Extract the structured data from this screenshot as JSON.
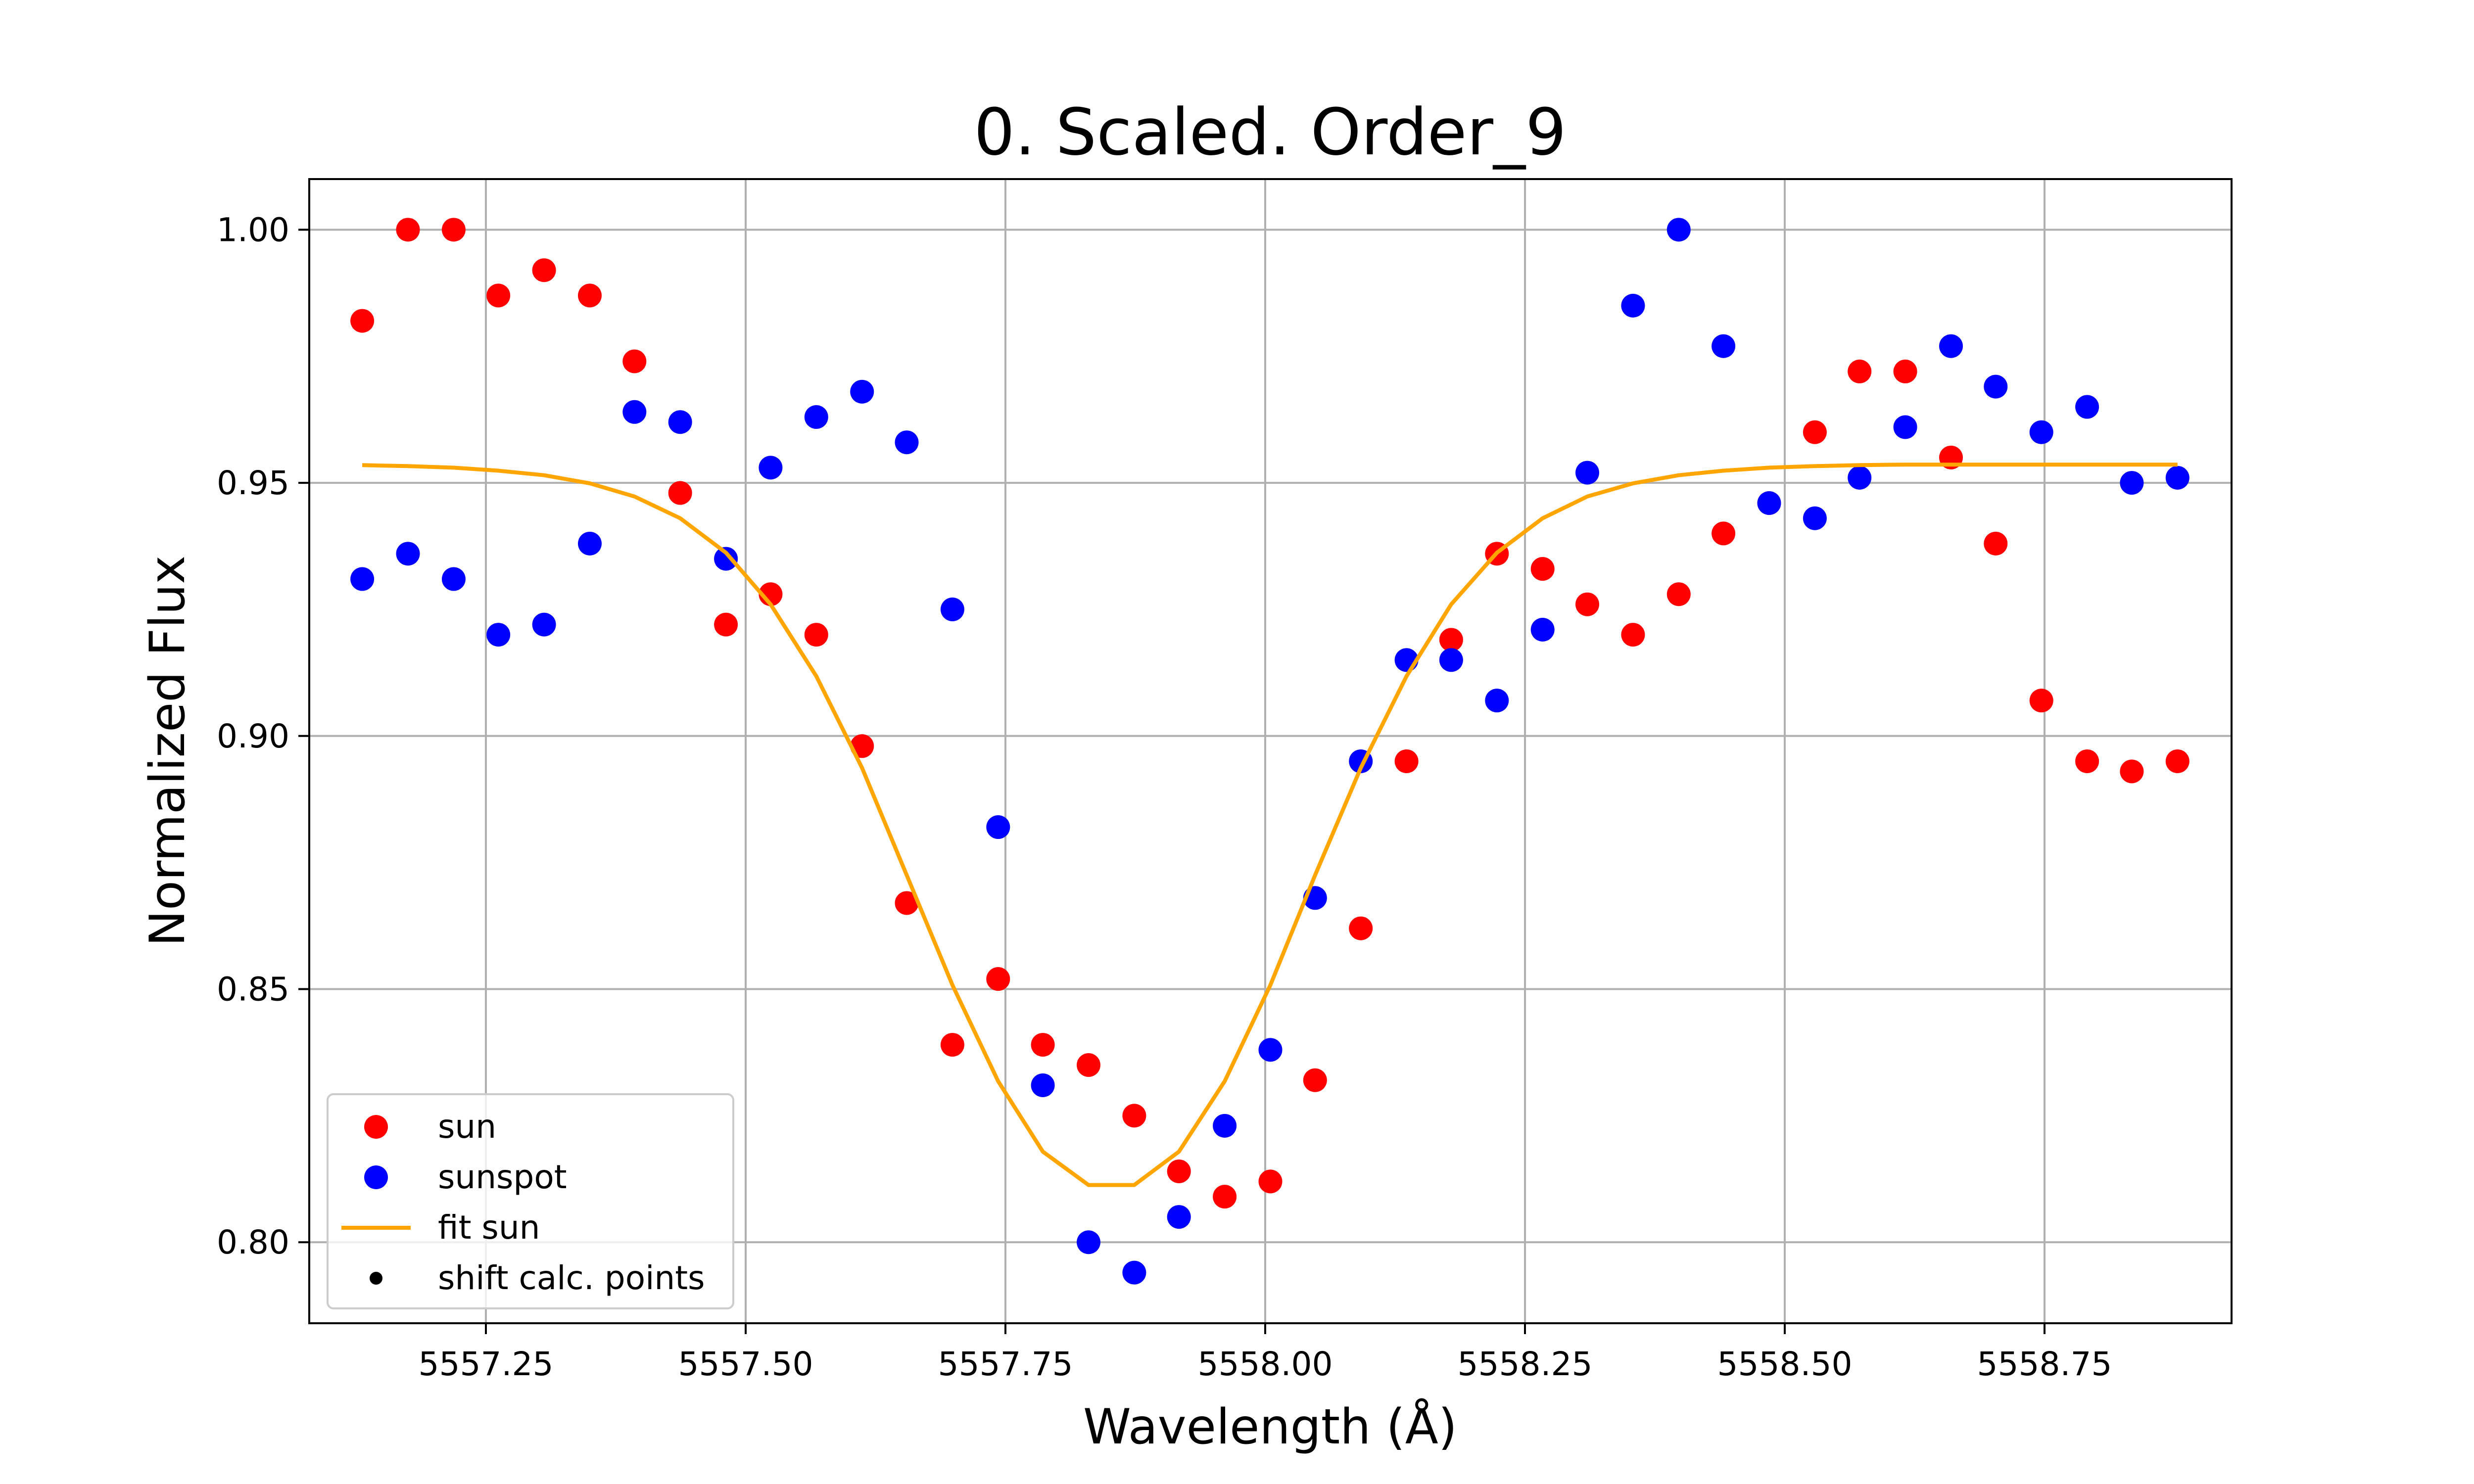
{
  "colors": {
    "sun": "#ff0000",
    "sunspot": "#0000ff",
    "fit": "#ffa500",
    "shift": "#000000",
    "grid": "#b0b0b0"
  },
  "chart_data": {
    "type": "scatter",
    "title": "0. Scaled. Order_9",
    "xlabel": "Wavelength (Å)",
    "ylabel": "Normalized Flux",
    "xlim": [
      5557.08,
      5558.93
    ],
    "ylim": [
      0.784,
      1.01
    ],
    "grid": true,
    "legend_position": "lower-left",
    "xticks": [
      5557.25,
      5557.5,
      5557.75,
      5558.0,
      5558.25,
      5558.5,
      5558.75
    ],
    "xtick_labels": [
      "5557.25",
      "5557.50",
      "5557.75",
      "5558.00",
      "5558.25",
      "5558.50",
      "5558.75"
    ],
    "yticks": [
      0.8,
      0.85,
      0.9,
      0.95,
      1.0
    ],
    "ytick_labels": [
      "0.80",
      "0.85",
      "0.90",
      "0.95",
      "1.00"
    ],
    "legend": [
      "sun",
      "sunspot",
      "fit sun",
      "shift calc. points"
    ],
    "series": [
      {
        "name": "sun",
        "kind": "scatter",
        "x": [
          5557.131,
          5557.175,
          5557.219,
          5557.262,
          5557.306,
          5557.35,
          5557.393,
          5557.437,
          5557.481,
          5557.524,
          5557.568,
          5557.612,
          5557.655,
          5557.699,
          5557.743,
          5557.786,
          5557.83,
          5557.874,
          5557.917,
          5557.961,
          5558.005,
          5558.048,
          5558.092,
          5558.136,
          5558.179,
          5558.223,
          5558.267,
          5558.31,
          5558.354,
          5558.398,
          5558.441,
          5558.485,
          5558.529,
          5558.572,
          5558.616,
          5558.66,
          5558.703,
          5558.747,
          5558.791,
          5558.834,
          5558.878
        ],
        "y": [
          0.982,
          1.0,
          1.0,
          0.987,
          0.992,
          0.987,
          0.974,
          0.948,
          0.922,
          0.928,
          0.92,
          0.898,
          0.867,
          0.839,
          0.852,
          0.839,
          0.835,
          0.825,
          0.814,
          0.809,
          0.812,
          0.832,
          0.862,
          0.895,
          0.919,
          0.936,
          0.933,
          0.926,
          0.92,
          0.928,
          0.94,
          0.946,
          0.96,
          0.972,
          0.972,
          0.955,
          0.938,
          0.907,
          0.895,
          0.893,
          0.895
        ]
      },
      {
        "name": "sunspot",
        "kind": "scatter",
        "x": [
          5557.131,
          5557.175,
          5557.219,
          5557.262,
          5557.306,
          5557.35,
          5557.393,
          5557.437,
          5557.481,
          5557.524,
          5557.568,
          5557.612,
          5557.655,
          5557.699,
          5557.743,
          5557.786,
          5557.83,
          5557.874,
          5557.917,
          5557.961,
          5558.005,
          5558.048,
          5558.092,
          5558.136,
          5558.179,
          5558.223,
          5558.267,
          5558.31,
          5558.354,
          5558.398,
          5558.441,
          5558.485,
          5558.529,
          5558.572,
          5558.616,
          5558.66,
          5558.703,
          5558.747,
          5558.791,
          5558.834,
          5558.878
        ],
        "y": [
          0.931,
          0.936,
          0.931,
          0.92,
          0.922,
          0.938,
          0.964,
          0.962,
          0.935,
          0.953,
          0.963,
          0.968,
          0.958,
          0.925,
          0.882,
          0.831,
          0.8,
          0.794,
          0.805,
          0.823,
          0.838,
          0.868,
          0.895,
          0.915,
          0.915,
          0.907,
          0.921,
          0.952,
          0.985,
          1.0,
          0.977,
          0.946,
          0.943,
          0.951,
          0.961,
          0.977,
          0.969,
          0.96,
          0.965,
          0.95,
          0.951
        ]
      },
      {
        "name": "fit sun",
        "kind": "line",
        "x": [
          5557.131,
          5557.175,
          5557.219,
          5557.262,
          5557.306,
          5557.35,
          5557.393,
          5557.437,
          5557.481,
          5557.524,
          5557.568,
          5557.612,
          5557.655,
          5557.699,
          5557.743,
          5557.786,
          5557.83,
          5557.874,
          5557.917,
          5557.961,
          5558.005,
          5558.048,
          5558.092,
          5558.136,
          5558.179,
          5558.223,
          5558.267,
          5558.31,
          5558.354,
          5558.398,
          5558.441,
          5558.485,
          5558.529,
          5558.572,
          5558.616,
          5558.66,
          5558.703,
          5558.747,
          5558.791,
          5558.834,
          5558.878
        ],
        "y": [
          0.9535,
          0.9533,
          0.953,
          0.9524,
          0.9515,
          0.9499,
          0.9473,
          0.943,
          0.9362,
          0.926,
          0.9118,
          0.8937,
          0.8725,
          0.8508,
          0.8318,
          0.8179,
          0.8113,
          0.8113,
          0.8179,
          0.8318,
          0.8508,
          0.8725,
          0.8937,
          0.9118,
          0.926,
          0.9362,
          0.943,
          0.9473,
          0.9499,
          0.9515,
          0.9524,
          0.953,
          0.9533,
          0.9535,
          0.9536,
          0.9536,
          0.9536,
          0.9536,
          0.9536,
          0.9536,
          0.9536
        ]
      }
    ]
  }
}
